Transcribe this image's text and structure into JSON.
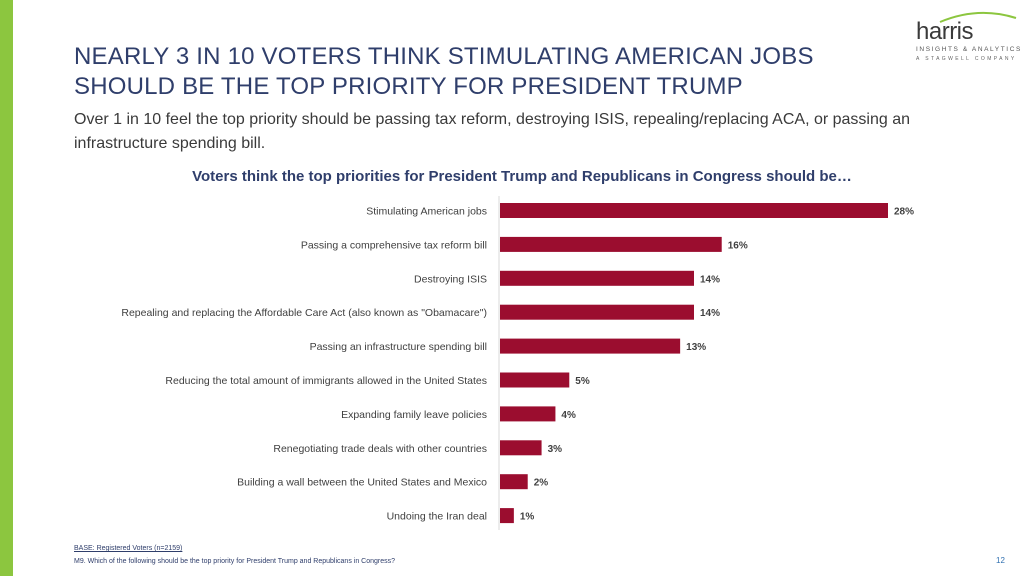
{
  "slide": {
    "title_line1": "NEARLY 3 IN 10 VOTERS THINK STIMULATING AMERICAN JOBS",
    "title_line2": "SHOULD BE THE TOP PRIORITY FOR PRESIDENT TRUMP",
    "subtitle": "Over 1 in 10 feel the top priority should be passing tax reform, destroying ISIS, repealing/replacing ACA, or passing an infrastructure spending bill.",
    "base_note": "BASE: Registered Voters (n=2159)",
    "question_note": "M9. Which of the following should be the top priority for President Trump and Republicans in Congress?",
    "page_number": "12"
  },
  "logo": {
    "wordmark": "harris",
    "tagline": "INSIGHTS & ANALYTICS",
    "company": "A STAGWELL COMPANY"
  },
  "colors": {
    "bar": "#9b0d2f",
    "title": "#2f3e6b",
    "accent": "#8cc63f"
  },
  "chart_data": {
    "type": "bar",
    "orientation": "horizontal",
    "title": "Voters think the top priorities for President Trump and Republicans in Congress should be…",
    "categories": [
      "Stimulating American jobs",
      "Passing a comprehensive tax reform bill",
      "Destroying ISIS",
      "Repealing and replacing the Affordable Care Act (also known as \"Obamacare\")",
      "Passing an infrastructure spending bill",
      "Reducing the total amount of immigrants allowed in the United States",
      "Expanding family leave policies",
      "Renegotiating trade deals with other countries",
      "Building a wall between the United States and Mexico",
      "Undoing the Iran deal"
    ],
    "values": [
      28,
      16,
      14,
      14,
      13,
      5,
      4,
      3,
      2,
      1
    ],
    "value_labels": [
      "28%",
      "16%",
      "14%",
      "14%",
      "13%",
      "5%",
      "4%",
      "3%",
      "2%",
      "1%"
    ],
    "unit": "%",
    "xlim": [
      0,
      28
    ],
    "xlabel": "",
    "ylabel": ""
  }
}
